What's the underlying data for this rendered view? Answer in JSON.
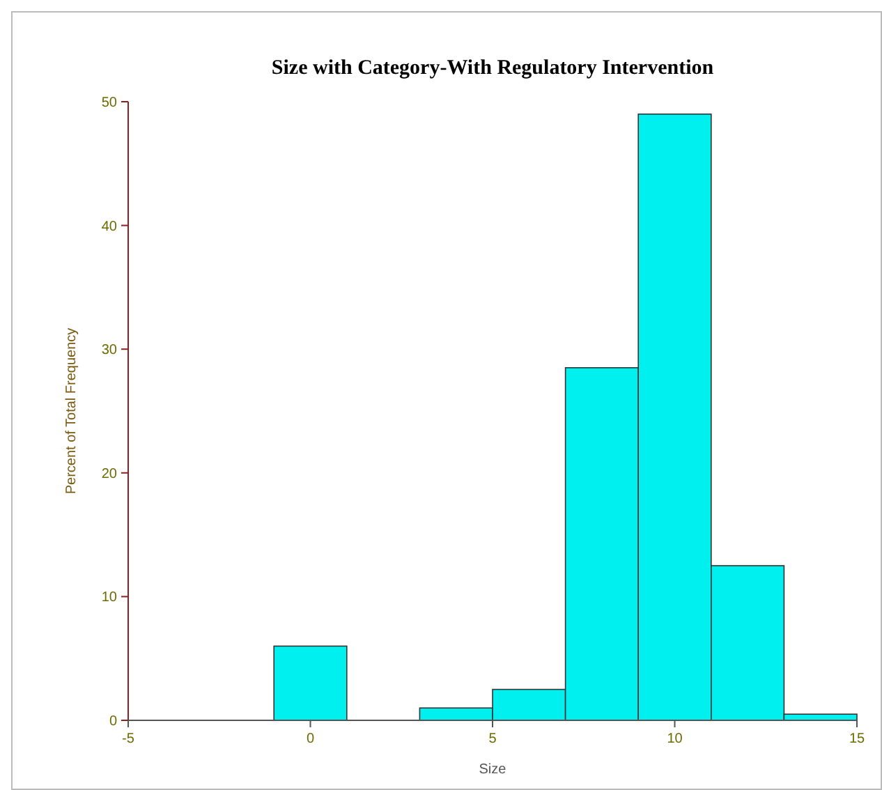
{
  "chart_data": {
    "type": "histogram",
    "title": "Size with Category-With Regulatory Intervention",
    "xlabel": "Size",
    "ylabel": "Percent of Total Frequency",
    "bins": [
      -1,
      1,
      3,
      5,
      7,
      9,
      11,
      13,
      15
    ],
    "values": [
      6,
      0,
      1,
      2.5,
      28.5,
      49,
      12.5,
      0.5
    ],
    "color": "#00f0f0",
    "xlim": [
      -5,
      15
    ],
    "xticks": [
      -5,
      0,
      5,
      10,
      15
    ],
    "ylim": [
      0,
      50
    ],
    "yticks": [
      0,
      10,
      20,
      30,
      40,
      50
    ],
    "grid": false
  }
}
